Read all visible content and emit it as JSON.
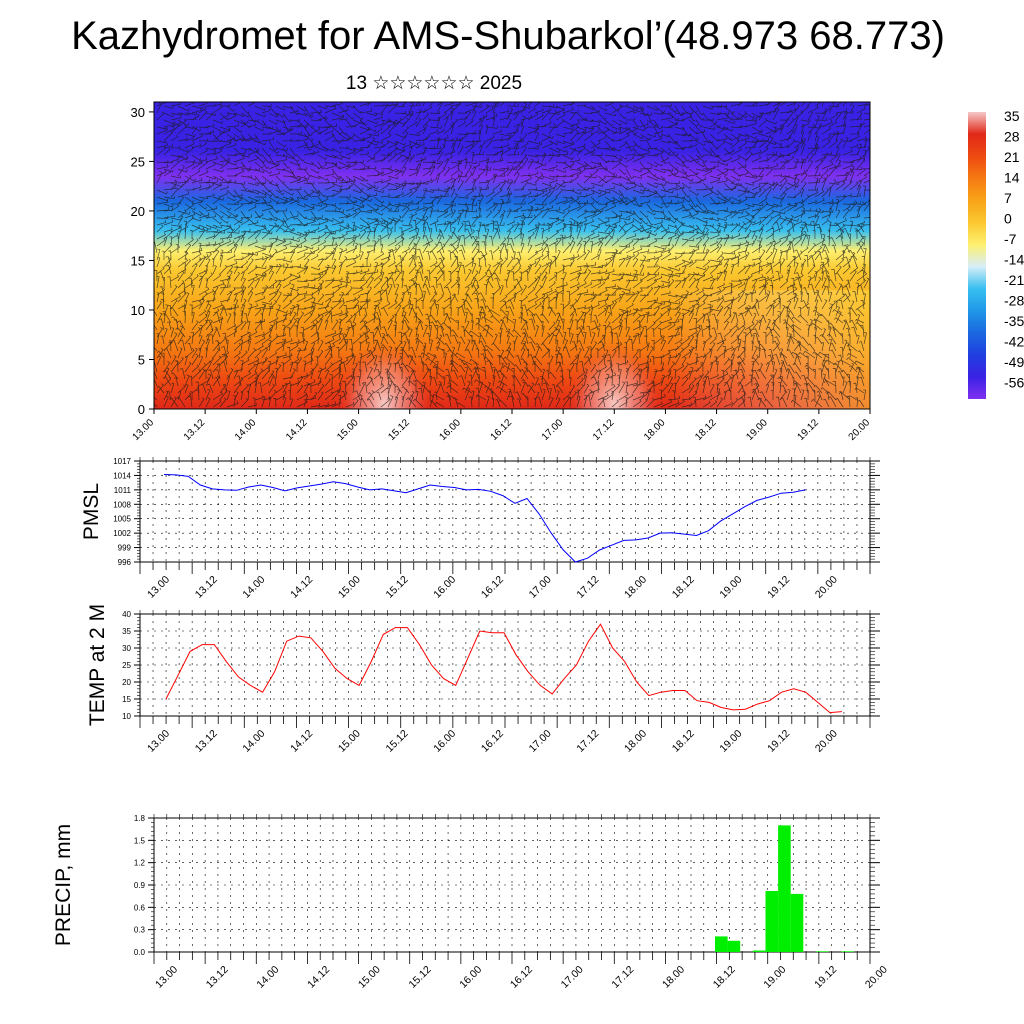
{
  "title": "Kazhydromet for AMS-Shubarkol’(48.973 68.773)",
  "subtitle": "13 ☆☆☆☆☆☆ 2025",
  "time_labels": [
    "13.00",
    "13.12",
    "14.00",
    "14.12",
    "15.00",
    "15.12",
    "16.00",
    "16.12",
    "17.00",
    "17.12",
    "18.00",
    "18.12",
    "19.00",
    "19.12",
    "20.00"
  ],
  "chart_data": [
    {
      "type": "heatmap",
      "title": "",
      "x_labels": [
        "13.00",
        "13.12",
        "14.00",
        "14.12",
        "15.00",
        "15.12",
        "16.00",
        "16.12",
        "17.00",
        "17.12",
        "18.00",
        "18.12",
        "19.00",
        "19.12",
        "20.00"
      ],
      "ylim": [
        0,
        31
      ],
      "y_ticks": [
        0,
        5,
        10,
        15,
        20,
        25,
        30
      ],
      "colorbar_labels": [
        "35",
        "28",
        "21",
        "14",
        "7",
        "0",
        "-7",
        "-14",
        "-21",
        "-28",
        "-35",
        "-42",
        "-49",
        "-56"
      ],
      "colorbar_colors": [
        "#f5c8c8",
        "#e02818",
        "#ee4a12",
        "#f57a12",
        "#f8a418",
        "#fbc830",
        "#fef070",
        "#d8eef8",
        "#38c0f0",
        "#2098e8",
        "#1a68e0",
        "#2040e0",
        "#3a22e4",
        "#8030f0"
      ],
      "profile_height": [
        0,
        3,
        6,
        10,
        14,
        16,
        18,
        21,
        23.5,
        26,
        28,
        31
      ],
      "profile_temp": [
        30,
        22,
        17,
        9,
        2,
        -8,
        -24,
        -36,
        -54,
        -48,
        -46,
        -52
      ],
      "warm_spots_at_surface": [
        "15.06",
        "17.12"
      ],
      "wind_barbs": true
    },
    {
      "type": "line",
      "ylabel": "PMSL",
      "x_labels": [
        "13.00",
        "13.12",
        "14.00",
        "14.12",
        "15.00",
        "15.12",
        "16.00",
        "16.12",
        "17.00",
        "17.12",
        "18.00",
        "18.12",
        "19.00",
        "19.12",
        "20.00"
      ],
      "ylim": [
        996,
        1017
      ],
      "y_ticks": [
        996,
        999,
        1002,
        1005,
        1008,
        1011,
        1014,
        1017
      ],
      "color": "#0000ff",
      "step_hours": 3,
      "values": [
        1014.2,
        1014.1,
        1013.8,
        1012.0,
        1011.2,
        1011.0,
        1010.9,
        1011.6,
        1012.0,
        1011.5,
        1010.8,
        1011.4,
        1011.8,
        1012.2,
        1012.7,
        1012.3,
        1011.6,
        1011.0,
        1011.2,
        1010.8,
        1010.4,
        1011.2,
        1012.0,
        1011.7,
        1011.5,
        1011.0,
        1011.1,
        1010.7,
        1009.8,
        1008.2,
        1009.2,
        1006.0,
        1002.0,
        998.5,
        996.0,
        996.8,
        998.5,
        999.5,
        1000.5,
        1000.6,
        1001.0,
        1002.0,
        1002.1,
        1001.8,
        1001.5,
        1002.5,
        1004.5,
        1006.0,
        1007.5,
        1008.8,
        1009.5,
        1010.3,
        1010.5,
        1011.0
      ]
    },
    {
      "type": "line",
      "ylabel": "TEMP at 2 M",
      "x_labels": [
        "13.00",
        "13.12",
        "14.00",
        "14.12",
        "15.00",
        "15.12",
        "16.00",
        "16.12",
        "17.00",
        "17.12",
        "18.00",
        "18.12",
        "19.00",
        "19.12",
        "20.00"
      ],
      "ylim": [
        10,
        40
      ],
      "y_ticks": [
        10,
        15,
        20,
        25,
        30,
        35,
        40
      ],
      "color": "#ff0000",
      "step_hours": 3,
      "values": [
        15,
        22,
        29,
        31,
        31,
        26,
        21.5,
        19,
        17,
        23,
        32,
        33.5,
        33,
        29,
        24,
        21,
        19,
        26,
        34,
        36,
        36,
        31,
        25,
        21,
        19,
        27,
        35,
        34.5,
        34.5,
        28,
        23,
        19,
        16.5,
        21,
        25,
        32,
        37,
        30,
        26,
        20,
        16,
        17,
        17.5,
        17.5,
        14.5,
        14,
        12.5,
        11.8,
        12,
        13.5,
        14.5,
        17,
        18,
        17,
        14,
        11,
        11.3
      ]
    },
    {
      "type": "bar",
      "ylabel": "PRECIP, mm",
      "x_labels": [
        "13.00",
        "13.12",
        "14.00",
        "14.12",
        "15.00",
        "15.12",
        "16.00",
        "16.12",
        "17.00",
        "17.12",
        "18.00",
        "18.12",
        "19.00",
        "19.12",
        "20.00"
      ],
      "ylim": [
        0,
        1.8
      ],
      "y_ticks": [
        "0.0",
        "0.3",
        "0.6",
        "0.9",
        "1.2",
        "1.5",
        "1.8"
      ],
      "color": "#00ee00",
      "step_hours": 3,
      "values": [
        0,
        0,
        0,
        0,
        0,
        0,
        0,
        0,
        0,
        0,
        0,
        0,
        0,
        0,
        0,
        0,
        0,
        0,
        0,
        0,
        0,
        0,
        0,
        0,
        0,
        0,
        0,
        0,
        0,
        0,
        0,
        0,
        0,
        0,
        0,
        0,
        0,
        0,
        0,
        0,
        0,
        0,
        0,
        0,
        0.21,
        0.15,
        0,
        0.02,
        0.82,
        1.7,
        0.78,
        0,
        0.01,
        0,
        0.01,
        0,
        0
      ]
    }
  ]
}
